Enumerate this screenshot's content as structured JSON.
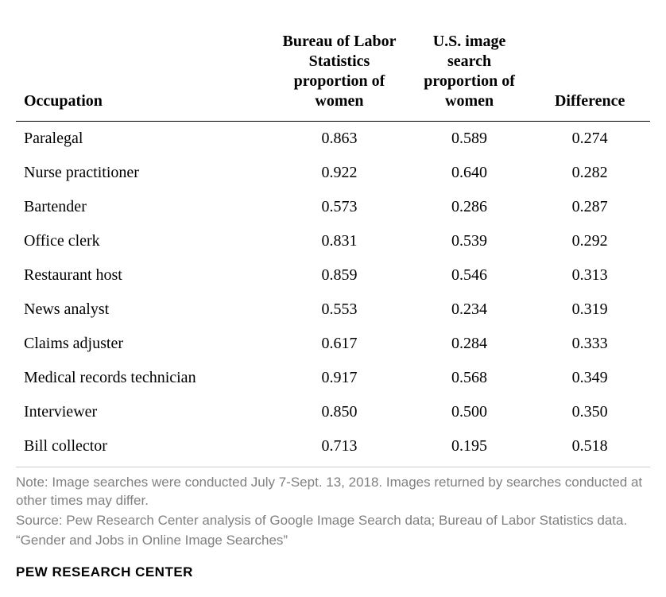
{
  "table": {
    "columns": [
      {
        "key": "occupation",
        "label": "Occupation",
        "align": "left",
        "width_pct": 40
      },
      {
        "key": "bls",
        "label": "Bureau of Labor Statistics proportion of women",
        "align": "center",
        "width_pct": 22
      },
      {
        "key": "img",
        "label": "U.S. image search proportion of women",
        "align": "center",
        "width_pct": 19
      },
      {
        "key": "diff",
        "label": "Difference",
        "align": "center",
        "width_pct": 19
      }
    ],
    "rows": [
      {
        "occupation": "Paralegal",
        "bls": "0.863",
        "img": "0.589",
        "diff": "0.274"
      },
      {
        "occupation": "Nurse practitioner",
        "bls": "0.922",
        "img": "0.640",
        "diff": "0.282"
      },
      {
        "occupation": "Bartender",
        "bls": "0.573",
        "img": "0.286",
        "diff": "0.287"
      },
      {
        "occupation": "Office clerk",
        "bls": "0.831",
        "img": "0.539",
        "diff": "0.292"
      },
      {
        "occupation": "Restaurant host",
        "bls": "0.859",
        "img": "0.546",
        "diff": "0.313"
      },
      {
        "occupation": "News analyst",
        "bls": "0.553",
        "img": "0.234",
        "diff": "0.319"
      },
      {
        "occupation": "Claims adjuster",
        "bls": "0.617",
        "img": "0.284",
        "diff": "0.333"
      },
      {
        "occupation": "Medical records technician",
        "bls": "0.917",
        "img": "0.568",
        "diff": "0.349"
      },
      {
        "occupation": "Interviewer",
        "bls": "0.850",
        "img": "0.500",
        "diff": "0.350"
      },
      {
        "occupation": "Bill collector",
        "bls": "0.713",
        "img": "0.195",
        "diff": "0.518"
      }
    ],
    "header_font_size": 20,
    "cell_font_size": 20,
    "header_border_color": "#000000",
    "bottom_border_color": "#cccccc",
    "text_color": "#000000",
    "background_color": "#ffffff"
  },
  "notes": {
    "line1": "Note: Image searches were conducted July 7-Sept. 13, 2018. Images returned by searches conducted at other times may differ.",
    "line2": "Source: Pew Research Center analysis of Google Image Search data; Bureau of Labor Statistics data.",
    "line3": "“Gender and Jobs in Online Image Searches”",
    "color": "#808080",
    "font_size": 17
  },
  "footer": {
    "brand": "PEW RESEARCH CENTER",
    "color": "#000000",
    "font_size": 17
  }
}
